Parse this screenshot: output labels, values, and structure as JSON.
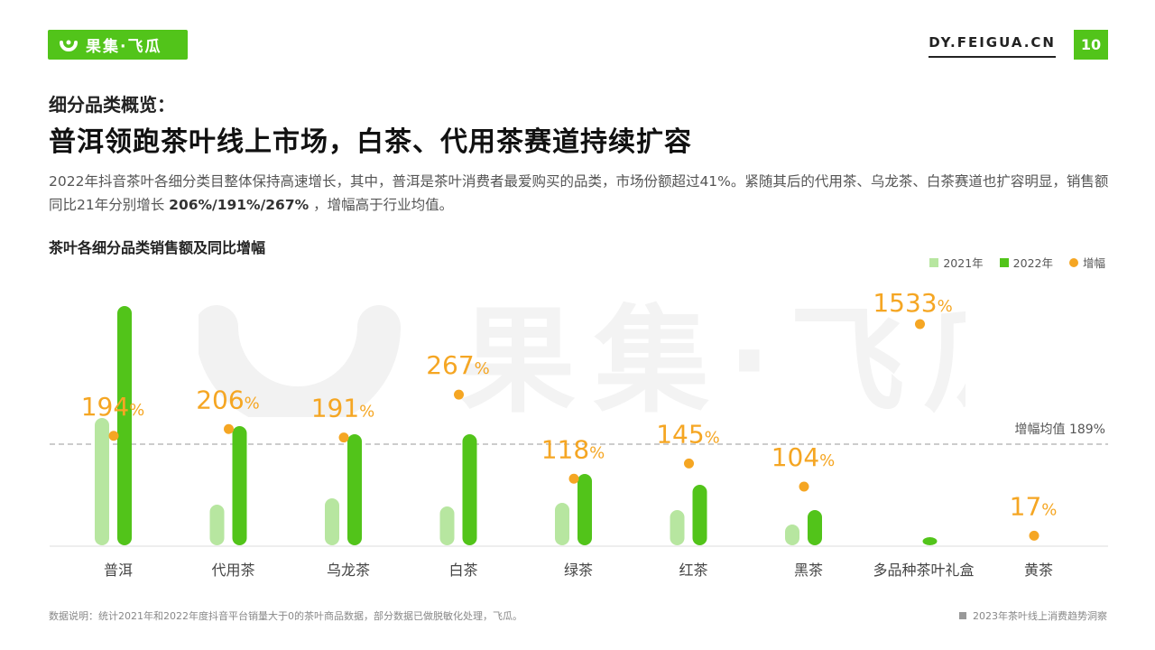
{
  "header": {
    "logo_text": "果集·飞瓜",
    "site": "DY.FEIGUA.CN",
    "page_number": "10"
  },
  "headline": {
    "subtitle": "细分品类概览：",
    "title": "普洱领跑茶叶线上市场，白茶、代用茶赛道持续扩容",
    "desc_part1": "2022年抖音茶叶各细分类目整体保持高速增长，其中，普洱是茶叶消费者最爱购买的品类，市场份额超过41%。紧随其后的代用茶、乌龙茶、白茶赛道也扩容明显，销售额同比21年分别增长 ",
    "desc_bold": "206%/191%/267%",
    "desc_part2": " ，增幅高于行业均值。"
  },
  "chart_data": {
    "type": "bar",
    "title": "茶叶各细分品类销售额及同比增幅",
    "categories": [
      "普洱",
      "代用茶",
      "乌龙茶",
      "白茶",
      "绿茶",
      "红茶",
      "黑茶",
      "多品种茶叶礼盒",
      "黄茶"
    ],
    "series": [
      {
        "name": "2021年",
        "values": [
          141,
          45,
          52,
          43,
          47,
          39,
          23,
          0,
          0
        ],
        "color": "#b7e6a0"
      },
      {
        "name": "2022年",
        "values": [
          265,
          132,
          123,
          123,
          79,
          67,
          39,
          9,
          0
        ],
        "color": "#52c41a"
      }
    ],
    "growth": {
      "name": "增幅",
      "values": [
        194,
        206,
        191,
        267,
        118,
        145,
        104,
        null,
        17
      ],
      "labels": [
        "194%",
        "206%",
        "191%",
        "267%",
        "118%",
        "145%",
        "104%",
        "",
        "17%"
      ],
      "extra_point": {
        "value": 1533,
        "label": "1533%",
        "category": "多品种茶叶礼盒"
      },
      "color": "#f5a623"
    },
    "average": {
      "label": "增幅均值",
      "value_label": "189%"
    }
  },
  "legend": {
    "items": [
      {
        "label": "2021年",
        "color": "#b7e6a0",
        "shape": "square"
      },
      {
        "label": "2022年",
        "color": "#52c41a",
        "shape": "square"
      },
      {
        "label": "增幅",
        "color": "#f5a623",
        "shape": "dot"
      }
    ]
  },
  "footer": {
    "note": "数据说明：统计2021年和2022年度抖音平台销量大于0的茶叶商品数据，部分数据已做脱敏化处理，飞瓜。",
    "source": "2023年茶叶线上消费趋势洞察"
  },
  "watermark": {
    "text": "果集·飞瓜"
  }
}
